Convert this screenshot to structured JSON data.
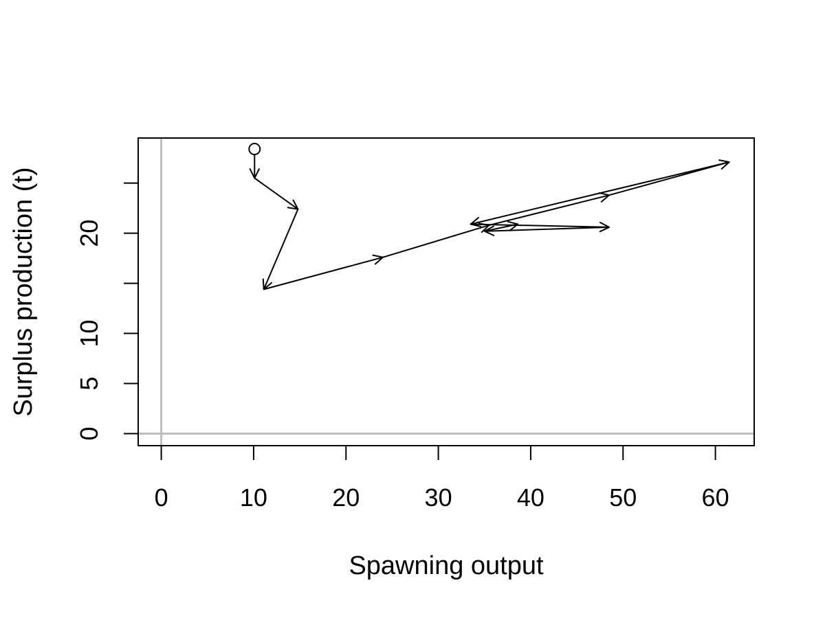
{
  "chart_data": {
    "type": "line",
    "title": "",
    "xlabel": "Spawning output",
    "ylabel": "Surplus production (t)",
    "xlim": [
      -2.5,
      64.2
    ],
    "ylim": [
      -1.2,
      29.5
    ],
    "x_ticks": [
      0,
      10,
      20,
      30,
      40,
      50,
      60
    ],
    "x_tick_labels": [
      "0",
      "10",
      "20",
      "30",
      "40",
      "50",
      "60"
    ],
    "y_ticks": [
      0,
      5,
      10,
      15,
      20,
      25
    ],
    "y_tick_labels": [
      "0",
      "5",
      "10",
      "",
      "20",
      ""
    ],
    "reference_lines": {
      "x": 0,
      "y": 0,
      "color": "#bebebe"
    },
    "grid": false,
    "legend": "none",
    "start_marker": "open-circle",
    "series": [
      {
        "color": "#000000",
        "arrows": true,
        "x": [
          10.1,
          10.1,
          14.8,
          11.1,
          24.0,
          35.5,
          48.5,
          61.5,
          33.5,
          48.5,
          35.0,
          38.6
        ],
        "y": [
          28.4,
          25.5,
          22.4,
          14.4,
          17.6,
          20.8,
          23.8,
          27.1,
          20.9,
          20.6,
          20.2,
          20.9
        ]
      }
    ]
  }
}
